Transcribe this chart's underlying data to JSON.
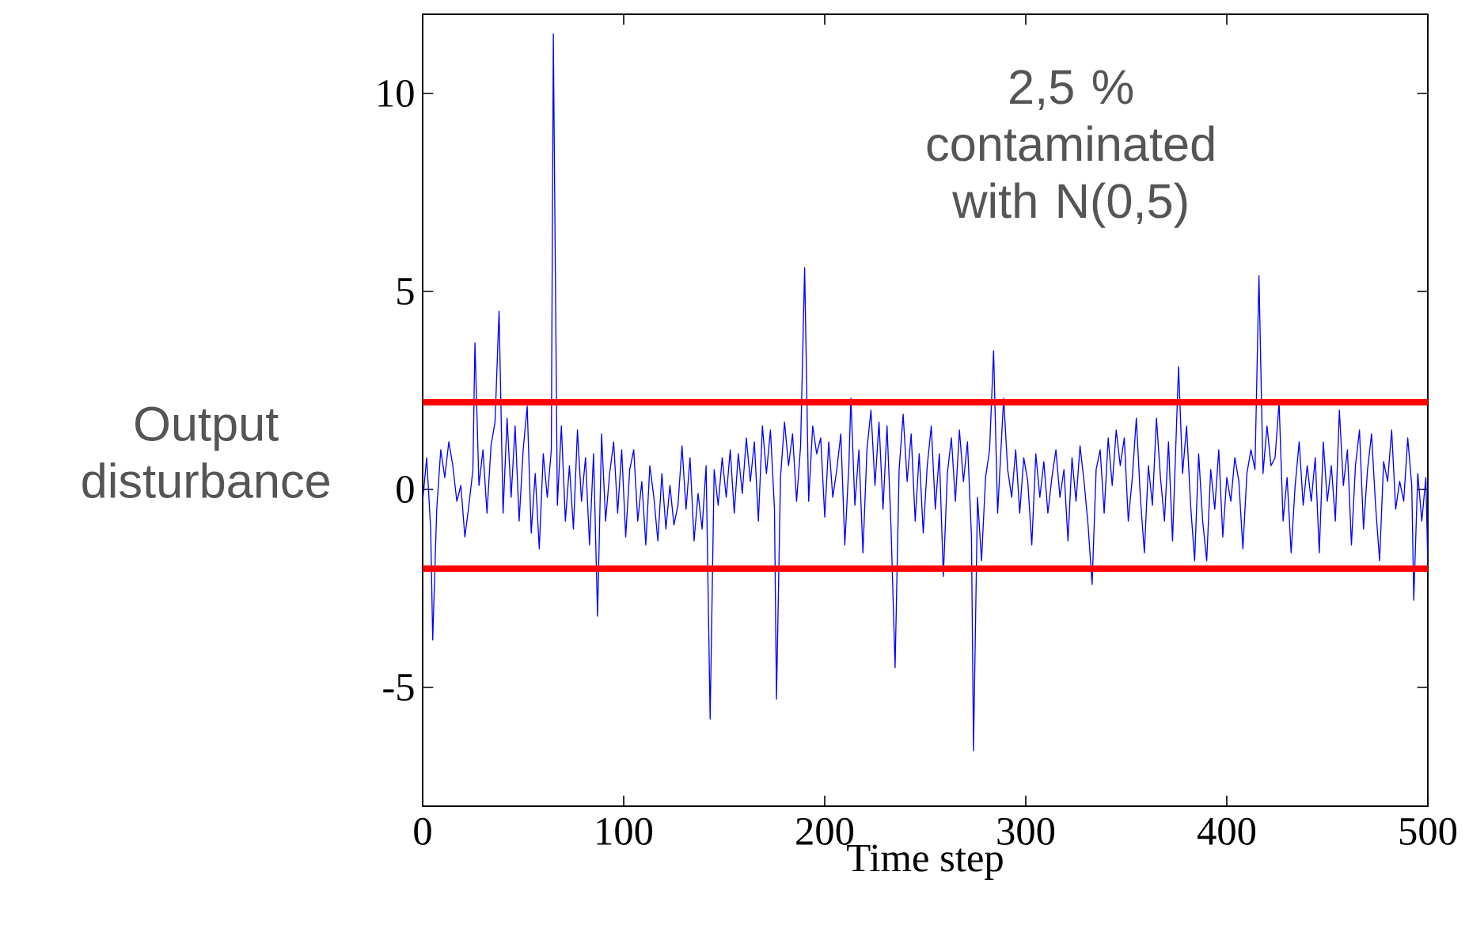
{
  "chart_data": {
    "type": "line",
    "xlabel": "Time step",
    "ylabel": "Output disturbance",
    "annotations": [
      "2,5 % contaminated with N(0,5)"
    ],
    "xlim": [
      0,
      500
    ],
    "ylim": [
      -8,
      12
    ],
    "xticks": [
      0,
      100,
      200,
      300,
      400,
      500
    ],
    "yticks": [
      -5,
      0,
      5,
      10
    ],
    "ref_lines": [
      {
        "axis": "y",
        "value": 2.2,
        "color": "#ff0000"
      },
      {
        "axis": "y",
        "value": -2.0,
        "color": "#ff0000"
      }
    ],
    "series": [
      {
        "color": "#0000ff",
        "x": [
          0,
          2,
          4,
          5,
          7,
          9,
          11,
          13,
          15,
          17,
          19,
          21,
          23,
          25,
          26,
          28,
          30,
          32,
          34,
          36,
          38,
          40,
          42,
          44,
          46,
          48,
          50,
          52,
          54,
          56,
          58,
          60,
          62,
          64,
          65,
          67,
          69,
          71,
          73,
          75,
          77,
          79,
          81,
          83,
          85,
          87,
          89,
          91,
          93,
          95,
          97,
          99,
          101,
          103,
          105,
          107,
          109,
          111,
          113,
          115,
          117,
          119,
          121,
          123,
          125,
          127,
          129,
          131,
          133,
          135,
          137,
          139,
          141,
          143,
          145,
          147,
          149,
          151,
          153,
          155,
          157,
          159,
          161,
          163,
          165,
          167,
          169,
          171,
          173,
          175,
          176,
          178,
          180,
          182,
          184,
          186,
          188,
          190,
          192,
          194,
          196,
          198,
          200,
          202,
          204,
          206,
          208,
          210,
          212,
          213,
          215,
          217,
          219,
          221,
          223,
          225,
          227,
          229,
          231,
          233,
          235,
          237,
          239,
          241,
          243,
          245,
          247,
          249,
          251,
          253,
          255,
          257,
          259,
          261,
          263,
          265,
          267,
          269,
          271,
          273,
          274,
          276,
          278,
          280,
          282,
          284,
          286,
          289,
          291,
          293,
          295,
          297,
          299,
          301,
          303,
          305,
          307,
          309,
          311,
          313,
          315,
          317,
          319,
          321,
          323,
          325,
          327,
          329,
          331,
          333,
          335,
          337,
          339,
          341,
          343,
          345,
          347,
          349,
          351,
          353,
          355,
          357,
          359,
          361,
          363,
          365,
          367,
          369,
          371,
          373,
          376,
          378,
          380,
          382,
          384,
          386,
          388,
          390,
          392,
          394,
          396,
          398,
          400,
          402,
          404,
          406,
          408,
          410,
          412,
          414,
          416,
          418,
          420,
          422,
          424,
          426,
          428,
          430,
          432,
          434,
          436,
          438,
          440,
          442,
          444,
          446,
          448,
          450,
          452,
          454,
          456,
          458,
          460,
          462,
          464,
          466,
          468,
          470,
          472,
          474,
          476,
          478,
          480,
          482,
          484,
          486,
          488,
          490,
          492,
          493,
          495,
          497,
          499,
          500
        ],
        "values": [
          -0.3,
          0.8,
          -1.0,
          -3.8,
          -0.5,
          1.0,
          0.3,
          1.2,
          0.6,
          -0.3,
          0.1,
          -1.2,
          -0.4,
          0.5,
          3.7,
          0.1,
          1.0,
          -0.6,
          1.1,
          1.7,
          4.5,
          -0.6,
          1.8,
          -0.2,
          1.6,
          -0.8,
          1.0,
          2.1,
          -1.1,
          0.4,
          -1.5,
          0.9,
          -0.2,
          1.0,
          11.5,
          -0.4,
          1.6,
          -0.8,
          0.6,
          -1.0,
          1.5,
          -0.3,
          0.8,
          -1.4,
          0.9,
          -3.2,
          1.4,
          -0.8,
          0.4,
          1.2,
          -0.6,
          1.0,
          -1.2,
          0.5,
          1.0,
          -0.8,
          0.2,
          -1.4,
          0.6,
          -0.2,
          -1.3,
          0.4,
          -1.0,
          0.1,
          -0.9,
          -0.4,
          1.1,
          -0.5,
          0.8,
          -1.3,
          -0.1,
          -1.0,
          0.6,
          -5.8,
          0.5,
          -0.4,
          0.8,
          -0.2,
          1.0,
          -0.6,
          0.9,
          -0.1,
          1.3,
          0.2,
          1.2,
          -0.8,
          1.6,
          0.4,
          1.5,
          -0.5,
          -5.3,
          0.3,
          1.7,
          0.6,
          1.4,
          -0.3,
          1.1,
          5.6,
          -0.3,
          1.6,
          0.9,
          1.3,
          -0.7,
          1.2,
          -0.2,
          0.5,
          1.4,
          -1.4,
          0.6,
          2.3,
          -0.4,
          1.0,
          -1.6,
          1.0,
          2.0,
          0.1,
          1.7,
          -0.5,
          1.6,
          -1.0,
          -4.5,
          0.5,
          1.9,
          0.2,
          1.4,
          -0.8,
          0.9,
          -1.1,
          0.6,
          1.6,
          -0.5,
          0.9,
          -2.2,
          0.4,
          1.3,
          -0.3,
          1.5,
          0.2,
          1.2,
          -1.2,
          -6.6,
          -0.2,
          -1.8,
          0.3,
          1.0,
          3.5,
          -0.6,
          2.3,
          0.5,
          -0.2,
          1.0,
          -0.6,
          0.8,
          0.2,
          -1.4,
          0.9,
          -0.2,
          0.7,
          -0.6,
          0.3,
          1.0,
          -0.2,
          0.5,
          -1.3,
          0.8,
          -0.3,
          1.1,
          0.2,
          -0.9,
          -2.4,
          0.5,
          1.0,
          -0.6,
          1.3,
          0.1,
          1.5,
          0.6,
          1.3,
          -0.8,
          0.3,
          1.8,
          -0.2,
          -1.6,
          0.6,
          -0.4,
          1.8,
          0.3,
          -0.8,
          1.2,
          -1.3,
          3.1,
          0.4,
          1.6,
          -0.4,
          -1.8,
          0.9,
          -0.8,
          -1.8,
          0.5,
          -0.5,
          1.0,
          -1.2,
          0.3,
          -0.3,
          0.8,
          0.2,
          -1.5,
          0.4,
          1.0,
          0.5,
          5.4,
          0.4,
          1.6,
          0.6,
          0.8,
          2.2,
          -0.8,
          0.3,
          -1.6,
          0.1,
          1.2,
          -0.4,
          0.6,
          -0.3,
          0.8,
          -1.6,
          1.2,
          -0.3,
          0.6,
          -0.8,
          2.0,
          0.1,
          1.0,
          -1.4,
          0.6,
          1.5,
          -1.0,
          0.5,
          1.4,
          -0.4,
          -1.8,
          0.7,
          0.2,
          1.5,
          -0.5,
          0.2,
          -0.3,
          1.3,
          0.1,
          -2.8,
          0.4,
          -0.8,
          0.3,
          -1.9
        ]
      }
    ]
  }
}
